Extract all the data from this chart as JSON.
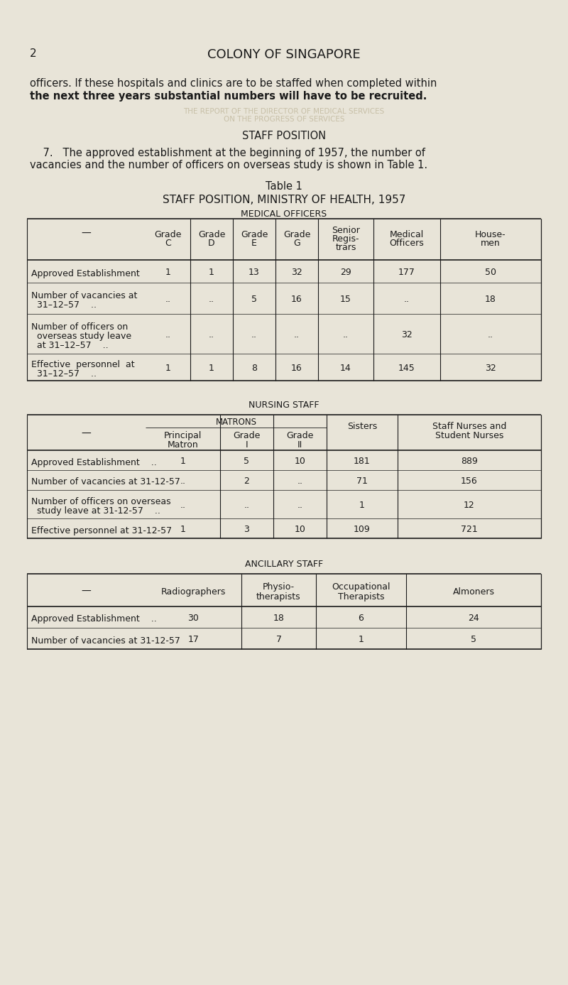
{
  "bg_color": "#e8e4d8",
  "page_number": "2",
  "header": "COLONY OF SINGAPORE",
  "intro_line1": "officers. If these hospitals and clinics are to be staffed when completed within",
  "intro_line2": "the next three years substantial numbers will have to be recruited.",
  "section_heading": "STAFF POSITION",
  "para_line1": "    7.   The approved establishment at the beginning of 1957, the number of",
  "para_line2": "vacancies and the number of officers on overseas study is shown in Table 1.",
  "table1_title": "Table 1",
  "table1_subtitle": "STAFF POSITION, MINISTRY OF HEALTH, 1957",
  "table1_section": "MEDICAL OFFICERS",
  "med_col_headers": [
    "Grade\nC",
    "Grade\nD",
    "Grade\nE",
    "Grade\nG",
    "Senior\nRegis-\ntrars",
    "Medical\nOfficers",
    "House-\nmen"
  ],
  "med_rows": [
    {
      "label": [
        "Approved Establishment"
      ],
      "values": [
        "1",
        "1",
        "13",
        "32",
        "29",
        "177",
        "50"
      ]
    },
    {
      "label": [
        "Number of vacancies at",
        "  31–12–57    .."
      ],
      "values": [
        "..",
        "..",
        "5",
        "16",
        "15",
        "..",
        "18"
      ]
    },
    {
      "label": [
        "Number of officers on",
        "  overseas study leave",
        "  at 31–12–57    .."
      ],
      "values": [
        "..",
        "..",
        "..",
        "..",
        "..",
        "32",
        ".."
      ]
    },
    {
      "label": [
        "Effective  personnel  at",
        "  31–12–57    .."
      ],
      "values": [
        "1",
        "1",
        "8",
        "16",
        "14",
        "145",
        "32"
      ]
    }
  ],
  "nursing_section": "NURSING STAFF",
  "matrons_header": "MATRONS",
  "nursing_col_headers": [
    "Principal\nMatron",
    "Grade\nI",
    "Grade\nII",
    "Sisters",
    "Staff Nurses and\nStudent Nurses"
  ],
  "nursing_rows": [
    {
      "label": [
        "Approved Establishment    .."
      ],
      "values": [
        "1",
        "5",
        "10",
        "181",
        "889"
      ]
    },
    {
      "label": [
        "Number of vacancies at 31-12-57"
      ],
      "values": [
        "..",
        "2",
        "..",
        "71",
        "156"
      ]
    },
    {
      "label": [
        "Number of officers on overseas",
        "  study leave at 31-12-57    .."
      ],
      "values": [
        "..",
        "..",
        "..",
        "1",
        "12"
      ]
    },
    {
      "label": [
        "Effective personnel at 31-12-57"
      ],
      "values": [
        "1",
        "3",
        "10",
        "109",
        "721"
      ]
    }
  ],
  "ancillary_section": "ANCILLARY STAFF",
  "ancillary_col_headers": [
    "Radiographers",
    "Physio-\ntherapists",
    "Occupational\nTherapists",
    "Almoners"
  ],
  "ancillary_rows": [
    {
      "label": [
        "Approved Establishment    .."
      ],
      "values": [
        "30",
        "18",
        "6",
        "24"
      ]
    },
    {
      "label": [
        "Number of vacancies at 31-12-57"
      ],
      "values": [
        "17",
        "7",
        "1",
        "5"
      ]
    }
  ]
}
